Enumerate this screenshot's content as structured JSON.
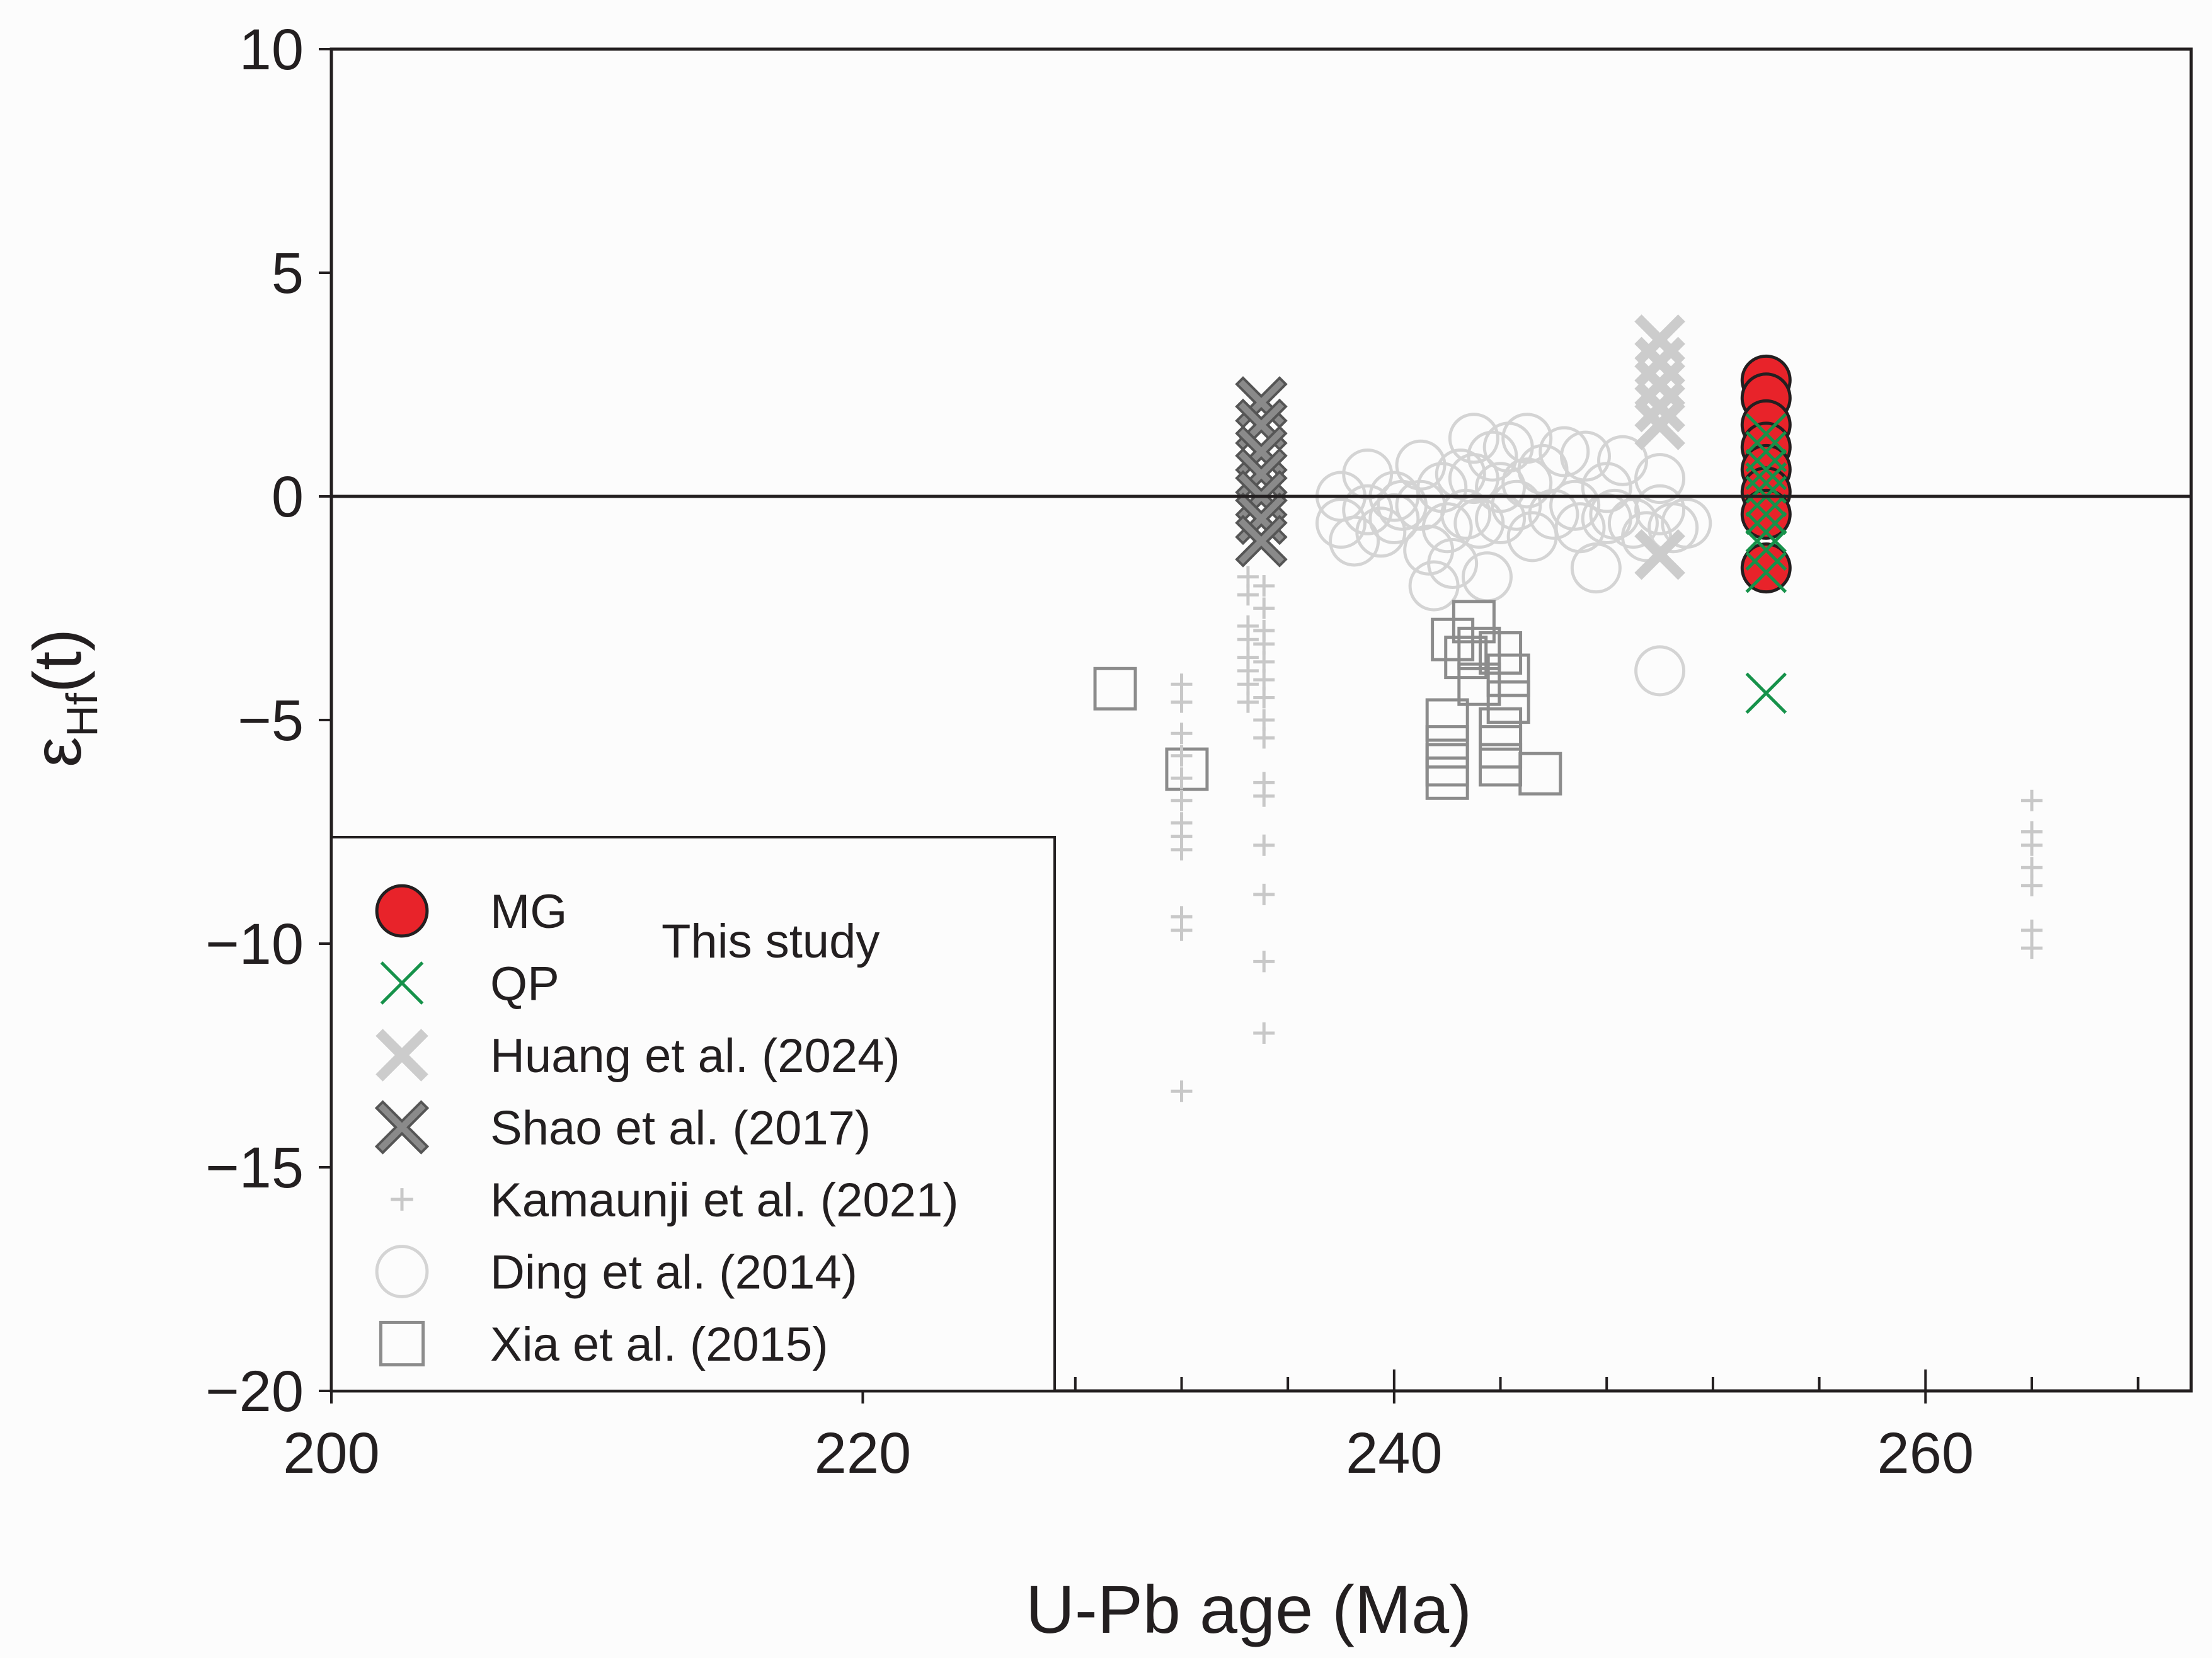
{
  "chart_data": {
    "type": "scatter",
    "title": "",
    "xlabel": "U-Pb age (Ma)",
    "ylabel": {
      "main": "ε",
      "sub": "Hf",
      "suffix": "(t)"
    },
    "xlim": [
      200,
      270
    ],
    "ylim": [
      -20,
      10
    ],
    "x_ticks": [
      200,
      220,
      240,
      260
    ],
    "y_ticks": [
      10,
      5,
      0,
      -5,
      -10,
      -15,
      -20
    ],
    "x_tick_labels": [
      "200",
      "220",
      "240",
      "260"
    ],
    "y_tick_labels": [
      "10",
      "5",
      "0",
      "−5",
      "−10",
      "−15",
      "−20"
    ],
    "x_minor_step": 4,
    "reference_line_y": 0,
    "grid": false,
    "legend": {
      "placement": "bottom-left",
      "group_label": "This study",
      "entries": [
        "MG",
        "QP",
        "Huang et al. (2024)",
        "Shao et al. (2017)",
        "Kamaunji et al. (2021)",
        "Ding  et al. (2014)",
        "Xia et al. (2015)"
      ]
    },
    "series": [
      {
        "name": "Ding  et al. (2014)",
        "marker": "open-circle",
        "color": "#d4d4d4",
        "points": [
          [
            238,
            0.0
          ],
          [
            238,
            -0.6
          ],
          [
            238.5,
            -1.0
          ],
          [
            239,
            -0.3
          ],
          [
            239,
            0.5
          ],
          [
            239.5,
            -0.8
          ],
          [
            240,
            0.0
          ],
          [
            240,
            -0.5
          ],
          [
            240.3,
            -0.2
          ],
          [
            241,
            0.7
          ],
          [
            241,
            -0.2
          ],
          [
            241.3,
            -1.2
          ],
          [
            241.5,
            -2.0
          ],
          [
            241.8,
            0.2
          ],
          [
            242,
            -0.7
          ],
          [
            242.2,
            -1.5
          ],
          [
            242.5,
            0.5
          ],
          [
            242.7,
            -0.4
          ],
          [
            243,
            1.3
          ],
          [
            243,
            0.4
          ],
          [
            243.2,
            -0.6
          ],
          [
            243.5,
            -1.8
          ],
          [
            243.7,
            0.9
          ],
          [
            244,
            0.2
          ],
          [
            244,
            -0.5
          ],
          [
            244.3,
            1.1
          ],
          [
            244.6,
            -0.2
          ],
          [
            245,
            1.3
          ],
          [
            245,
            0.3
          ],
          [
            245.2,
            -0.9
          ],
          [
            245.6,
            0.6
          ],
          [
            246,
            -0.4
          ],
          [
            246.4,
            1.0
          ],
          [
            246.8,
            -0.2
          ],
          [
            247,
            -0.7
          ],
          [
            247.2,
            0.9
          ],
          [
            247.6,
            -1.6
          ],
          [
            248,
            0.2
          ],
          [
            248,
            -0.5
          ],
          [
            248.3,
            -0.4
          ],
          [
            248.6,
            0.8
          ],
          [
            249,
            -0.6
          ],
          [
            249.5,
            -0.9
          ],
          [
            250,
            0.4
          ],
          [
            250,
            -0.3
          ],
          [
            250.5,
            -0.7
          ],
          [
            251,
            -0.6
          ],
          [
            250,
            -3.9
          ]
        ]
      },
      {
        "name": "Xia et al. (2015)",
        "marker": "open-square",
        "color": "#8c8c8c",
        "points": [
          [
            229.5,
            -4.3
          ],
          [
            232.2,
            -6.1
          ],
          [
            242.2,
            -3.2
          ],
          [
            242,
            -5.0
          ],
          [
            242,
            -5.6
          ],
          [
            242,
            -6.0
          ],
          [
            242,
            -6.3
          ],
          [
            242.7,
            -3.6
          ],
          [
            243,
            -2.8
          ],
          [
            243.2,
            -3.4
          ],
          [
            243.2,
            -4.2
          ],
          [
            244,
            -3.5
          ],
          [
            244.3,
            -4.0
          ],
          [
            244.3,
            -4.6
          ],
          [
            244,
            -5.2
          ],
          [
            244,
            -5.6
          ],
          [
            244,
            -6.0
          ],
          [
            245.5,
            -6.2
          ]
        ]
      },
      {
        "name": "Kamaunji et al. (2021)",
        "marker": "plus",
        "color": "#c8c8c8",
        "points": [
          [
            232,
            -4.2
          ],
          [
            232,
            -4.6
          ],
          [
            232,
            -5.3
          ],
          [
            232,
            -5.8
          ],
          [
            232,
            -6.3
          ],
          [
            232,
            -6.8
          ],
          [
            232,
            -7.3
          ],
          [
            232,
            -7.6
          ],
          [
            232,
            -7.9
          ],
          [
            232,
            -9.4
          ],
          [
            232,
            -9.7
          ],
          [
            232,
            -13.3
          ],
          [
            234.5,
            -1.8
          ],
          [
            234.5,
            -2.2
          ],
          [
            234.5,
            -2.9
          ],
          [
            234.5,
            -3.2
          ],
          [
            234.5,
            -3.6
          ],
          [
            234.5,
            -3.9
          ],
          [
            234.5,
            -4.2
          ],
          [
            234.5,
            -4.6
          ],
          [
            235.1,
            -2.0
          ],
          [
            235.1,
            -2.5
          ],
          [
            235.1,
            -3.0
          ],
          [
            235.1,
            -3.3
          ],
          [
            235.1,
            -3.7
          ],
          [
            235.1,
            -4.1
          ],
          [
            235.1,
            -4.5
          ],
          [
            235.1,
            -5.0
          ],
          [
            235.1,
            -5.4
          ],
          [
            235.1,
            -6.4
          ],
          [
            235.1,
            -6.7
          ],
          [
            235.1,
            -7.8
          ],
          [
            235.1,
            -8.9
          ],
          [
            235.1,
            -10.4
          ],
          [
            235.1,
            -12.0
          ],
          [
            264,
            -6.8
          ],
          [
            264,
            -7.5
          ],
          [
            264,
            -7.8
          ],
          [
            264,
            -8.3
          ],
          [
            264,
            -8.7
          ],
          [
            264,
            -9.7
          ],
          [
            264,
            -10.1
          ]
        ]
      },
      {
        "name": "Shao et al. (2017)",
        "marker": "thick-x",
        "color": "#7a7a7a",
        "points": [
          [
            235,
            2.1
          ],
          [
            235,
            1.6
          ],
          [
            235,
            1.0
          ],
          [
            235,
            0.5
          ],
          [
            235,
            0.0
          ],
          [
            235,
            -0.5
          ],
          [
            235,
            -1.0
          ]
        ]
      },
      {
        "name": "Huang et al. (2024)",
        "marker": "thick-x",
        "color": "#cccccc",
        "points": [
          [
            250,
            3.5
          ],
          [
            250,
            3.0
          ],
          [
            250,
            2.5
          ],
          [
            250,
            2.0
          ],
          [
            250,
            1.6
          ],
          [
            250,
            -1.3
          ]
        ]
      },
      {
        "name": "MG",
        "marker": "filled-circle",
        "color": "#e8232a",
        "points": [
          [
            254,
            2.6
          ],
          [
            254,
            2.2
          ],
          [
            254,
            1.6
          ],
          [
            254,
            1.1
          ],
          [
            254,
            0.6
          ],
          [
            254,
            0.1
          ],
          [
            254,
            -0.4
          ],
          [
            254,
            -1.6
          ]
        ]
      },
      {
        "name": "QP",
        "marker": "thin-x",
        "color": "#16924a",
        "points": [
          [
            254,
            1.4
          ],
          [
            254,
            1.0
          ],
          [
            254,
            0.6
          ],
          [
            254,
            0.3
          ],
          [
            254,
            0.0
          ],
          [
            254,
            -0.4
          ],
          [
            254,
            -0.8
          ],
          [
            254,
            -1.2
          ],
          [
            254,
            -1.7
          ],
          [
            254,
            -4.4
          ]
        ]
      }
    ]
  }
}
